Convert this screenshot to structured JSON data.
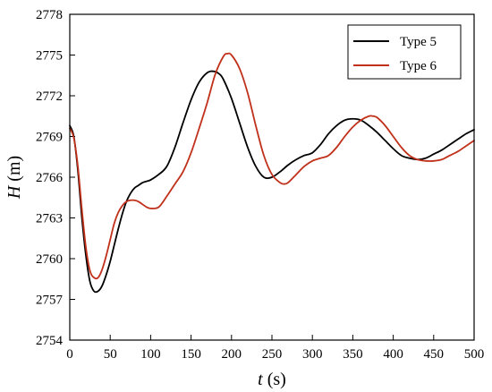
{
  "chart_data": {
    "type": "line",
    "xlabel": {
      "symbol": "t",
      "unit": " (s)"
    },
    "ylabel": {
      "symbol": "H",
      "unit": " (m)"
    },
    "xlim": [
      0,
      500
    ],
    "ylim": [
      2754,
      2778
    ],
    "xticks": [
      0,
      50,
      100,
      150,
      200,
      250,
      300,
      350,
      400,
      450,
      500
    ],
    "yticks": [
      2754,
      2757,
      2760,
      2763,
      2766,
      2769,
      2772,
      2775,
      2778
    ],
    "grid": false,
    "legend_position": "top-right",
    "series": [
      {
        "name": "Type 5",
        "color": "#000000",
        "x": [
          0,
          5,
          10,
          15,
          20,
          25,
          30,
          35,
          40,
          45,
          50,
          55,
          60,
          65,
          70,
          75,
          80,
          85,
          90,
          95,
          100,
          110,
          120,
          130,
          140,
          150,
          160,
          170,
          178,
          185,
          190,
          200,
          210,
          220,
          230,
          240,
          250,
          260,
          270,
          280,
          290,
          300,
          310,
          320,
          330,
          340,
          350,
          360,
          370,
          380,
          390,
          400,
          410,
          420,
          430,
          440,
          450,
          460,
          470,
          480,
          490,
          500
        ],
        "y": [
          2769.8,
          2769.0,
          2766.5,
          2763.0,
          2760.2,
          2758.3,
          2757.6,
          2757.6,
          2758.0,
          2758.8,
          2759.8,
          2761.0,
          2762.2,
          2763.3,
          2764.2,
          2764.8,
          2765.2,
          2765.4,
          2765.6,
          2765.7,
          2765.8,
          2766.2,
          2766.8,
          2768.2,
          2770.0,
          2771.7,
          2773.0,
          2773.7,
          2773.8,
          2773.6,
          2773.2,
          2771.8,
          2770.0,
          2768.2,
          2766.8,
          2766.0,
          2766.0,
          2766.4,
          2766.9,
          2767.3,
          2767.6,
          2767.8,
          2768.4,
          2769.2,
          2769.8,
          2770.2,
          2770.3,
          2770.2,
          2769.8,
          2769.3,
          2768.7,
          2768.1,
          2767.6,
          2767.4,
          2767.3,
          2767.4,
          2767.7,
          2768.0,
          2768.4,
          2768.8,
          2769.2,
          2769.5
        ]
      },
      {
        "name": "Type 6",
        "color": "#c0301a",
        "x": [
          0,
          5,
          10,
          15,
          20,
          25,
          30,
          35,
          40,
          45,
          50,
          55,
          60,
          65,
          70,
          75,
          80,
          85,
          90,
          95,
          100,
          110,
          120,
          130,
          140,
          150,
          160,
          170,
          180,
          190,
          195,
          200,
          210,
          220,
          230,
          240,
          250,
          260,
          265,
          270,
          280,
          290,
          300,
          310,
          320,
          330,
          340,
          350,
          360,
          370,
          375,
          380,
          390,
          400,
          410,
          420,
          430,
          440,
          450,
          460,
          470,
          480,
          490,
          500
        ],
        "y": [
          2769.6,
          2768.9,
          2766.8,
          2763.6,
          2760.8,
          2759.1,
          2758.6,
          2758.6,
          2759.2,
          2760.2,
          2761.4,
          2762.6,
          2763.4,
          2763.9,
          2764.2,
          2764.3,
          2764.3,
          2764.2,
          2764.0,
          2763.8,
          2763.7,
          2763.8,
          2764.6,
          2765.5,
          2766.4,
          2767.8,
          2769.6,
          2771.5,
          2773.6,
          2774.9,
          2775.1,
          2775.0,
          2774.0,
          2772.2,
          2769.8,
          2767.6,
          2766.2,
          2765.6,
          2765.5,
          2765.6,
          2766.2,
          2766.8,
          2767.2,
          2767.4,
          2767.6,
          2768.2,
          2769.0,
          2769.7,
          2770.2,
          2770.5,
          2770.5,
          2770.4,
          2769.8,
          2769.0,
          2768.2,
          2767.6,
          2767.3,
          2767.2,
          2767.2,
          2767.3,
          2767.6,
          2767.9,
          2768.3,
          2768.7
        ]
      }
    ]
  }
}
